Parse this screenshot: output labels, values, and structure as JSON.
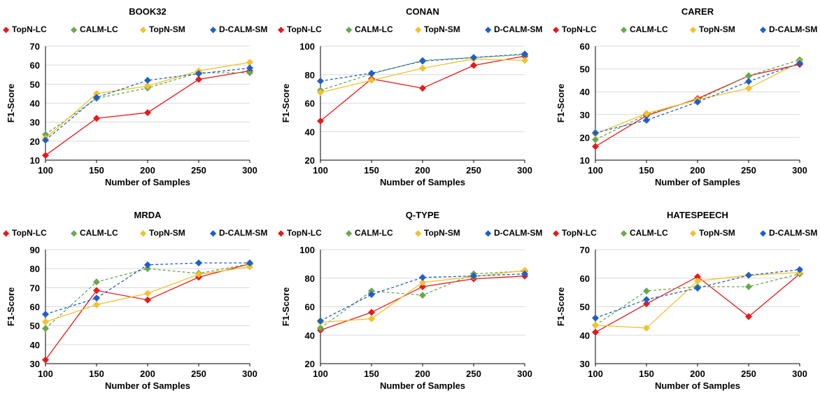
{
  "legend_marker": "◆",
  "series_colors": [
    "#e8191a",
    "#6aa84f",
    "#f2c12e",
    "#1f5fc8"
  ],
  "chart_data": [
    {
      "type": "line",
      "title": "BOOK32",
      "xlabel": "Number of Samples",
      "ylabel": "F1-Score",
      "x": [
        100,
        150,
        200,
        250,
        300
      ],
      "ylim": [
        10,
        70
      ],
      "yticks": [
        10,
        20,
        30,
        40,
        50,
        60,
        70
      ],
      "grid": true,
      "legend_position": "top",
      "series": [
        {
          "name": "TopN-LC",
          "values": [
            12.5,
            32,
            35,
            52.5,
            57
          ]
        },
        {
          "name": "CALM-LC",
          "values": [
            23.5,
            42.5,
            48,
            56,
            56
          ]
        },
        {
          "name": "TopN-SM",
          "values": [
            21.5,
            45,
            49,
            57,
            61.5
          ]
        },
        {
          "name": "D-CALM-SM",
          "values": [
            20.5,
            43,
            52,
            55.5,
            58.5
          ]
        }
      ]
    },
    {
      "type": "line",
      "title": "CONAN",
      "xlabel": "Number of Samples",
      "ylabel": "F1-Score",
      "x": [
        100,
        150,
        200,
        250,
        300
      ],
      "ylim": [
        20,
        100
      ],
      "yticks": [
        20,
        40,
        60,
        80,
        100
      ],
      "grid": true,
      "legend_position": "top",
      "series": [
        {
          "name": "TopN-LC",
          "values": [
            47.5,
            77,
            70.5,
            86.5,
            93
          ]
        },
        {
          "name": "CALM-LC",
          "values": [
            69,
            80.5,
            90,
            92,
            94
          ]
        },
        {
          "name": "TopN-SM",
          "values": [
            67.5,
            76,
            84.5,
            91,
            90
          ]
        },
        {
          "name": "D-CALM-SM",
          "values": [
            75.5,
            81,
            89.5,
            92,
            94.5
          ]
        }
      ]
    },
    {
      "type": "line",
      "title": "CARER",
      "xlabel": "Number of Samples",
      "ylabel": "F1-Score",
      "x": [
        100,
        150,
        200,
        250,
        300
      ],
      "ylim": [
        10,
        60
      ],
      "yticks": [
        10,
        20,
        30,
        40,
        50,
        60
      ],
      "grid": true,
      "legend_position": "top",
      "series": [
        {
          "name": "TopN-LC",
          "values": [
            16,
            29.5,
            37,
            47,
            52
          ]
        },
        {
          "name": "CALM-LC",
          "values": [
            19,
            30,
            36.5,
            47,
            54
          ]
        },
        {
          "name": "TopN-SM",
          "values": [
            21.5,
            30.5,
            36.5,
            41.5,
            53
          ]
        },
        {
          "name": "D-CALM-SM",
          "values": [
            22,
            27.5,
            35.5,
            44.5,
            52.5
          ]
        }
      ]
    },
    {
      "type": "line",
      "title": "MRDA",
      "xlabel": "Number of Samples",
      "ylabel": "F1-Score",
      "x": [
        100,
        150,
        200,
        250,
        300
      ],
      "ylim": [
        30,
        90
      ],
      "yticks": [
        30,
        40,
        50,
        60,
        70,
        80,
        90
      ],
      "grid": true,
      "legend_position": "top",
      "series": [
        {
          "name": "TopN-LC",
          "values": [
            32,
            68.5,
            63.5,
            75.5,
            82.5
          ]
        },
        {
          "name": "CALM-LC",
          "values": [
            48.5,
            73,
            80,
            77.5,
            82.5
          ]
        },
        {
          "name": "TopN-SM",
          "values": [
            52,
            61,
            67,
            77,
            81
          ]
        },
        {
          "name": "D-CALM-SM",
          "values": [
            56,
            64.5,
            82,
            83,
            83
          ]
        }
      ]
    },
    {
      "type": "line",
      "title": "Q-TYPE",
      "xlabel": "Number of Samples",
      "ylabel": "F1-Score",
      "x": [
        100,
        150,
        200,
        250,
        300
      ],
      "ylim": [
        20,
        100
      ],
      "yticks": [
        20,
        40,
        60,
        80,
        100
      ],
      "grid": true,
      "legend_position": "top",
      "series": [
        {
          "name": "TopN-LC",
          "values": [
            43.5,
            56,
            74,
            79.5,
            81.5
          ]
        },
        {
          "name": "CALM-LC",
          "values": [
            45,
            71,
            68,
            83,
            85
          ]
        },
        {
          "name": "TopN-SM",
          "values": [
            49,
            51.5,
            77,
            81,
            85.5
          ]
        },
        {
          "name": "D-CALM-SM",
          "values": [
            50,
            68.5,
            80.5,
            81.5,
            83
          ]
        }
      ]
    },
    {
      "type": "line",
      "title": "HATESPEECH",
      "xlabel": "Number of Samples",
      "ylabel": "F1-Score",
      "x": [
        100,
        150,
        200,
        250,
        300
      ],
      "ylim": [
        30,
        70
      ],
      "yticks": [
        30,
        40,
        50,
        60,
        70
      ],
      "grid": true,
      "legend_position": "top",
      "series": [
        {
          "name": "TopN-LC",
          "values": [
            41,
            51,
            60.5,
            46.5,
            61.5
          ]
        },
        {
          "name": "CALM-LC",
          "values": [
            43.5,
            55.5,
            57,
            57,
            61.5
          ]
        },
        {
          "name": "TopN-SM",
          "values": [
            43.5,
            42.5,
            59,
            61,
            62
          ]
        },
        {
          "name": "D-CALM-SM",
          "values": [
            46,
            52.5,
            56.5,
            61,
            63
          ]
        }
      ]
    }
  ]
}
